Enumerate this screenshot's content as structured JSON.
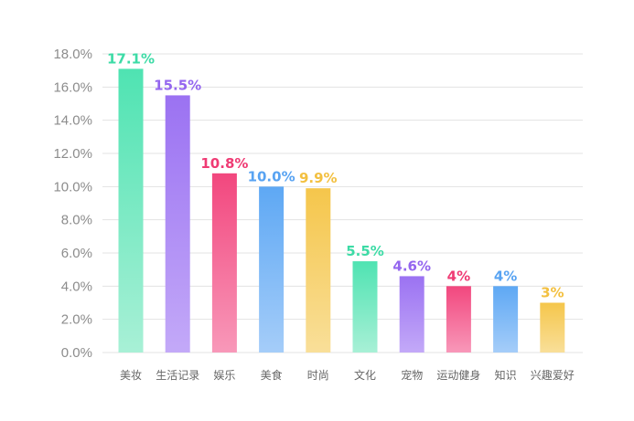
{
  "chart_data": {
    "type": "bar",
    "title": "",
    "xlabel": "",
    "ylabel": "",
    "ylim": [
      0,
      18
    ],
    "yticks": [
      "0.0%",
      "2.0%",
      "4.0%",
      "6.0%",
      "8.0%",
      "10.0%",
      "12.0%",
      "14.0%",
      "16.0%",
      "18.0%"
    ],
    "grid": true,
    "categories": [
      "美妆",
      "生活记录",
      "娱乐",
      "美食",
      "时尚",
      "文化",
      "宠物",
      "运动健身",
      "知识",
      "兴趣爱好"
    ],
    "values": [
      17.1,
      15.5,
      10.8,
      10.0,
      9.9,
      5.5,
      4.6,
      4,
      4,
      3
    ],
    "value_labels": [
      "17.1%",
      "15.5%",
      "10.8%",
      "10.0%",
      "9.9%",
      "5.5%",
      "4.6%",
      "4%",
      "4%",
      "3%"
    ],
    "bar_colors": [
      {
        "top": "#4fe3b2",
        "bottom": "#a8f0d6"
      },
      {
        "top": "#9b72f2",
        "bottom": "#c3a9f8"
      },
      {
        "top": "#f2477e",
        "bottom": "#f898b9"
      },
      {
        "top": "#5ea8f4",
        "bottom": "#a5cdf9"
      },
      {
        "top": "#f5c64b",
        "bottom": "#f9df99"
      },
      {
        "top": "#4fe3b2",
        "bottom": "#a8f0d6"
      },
      {
        "top": "#9b72f2",
        "bottom": "#c3a9f8"
      },
      {
        "top": "#f2477e",
        "bottom": "#f898b9"
      },
      {
        "top": "#5ea8f4",
        "bottom": "#a5cdf9"
      },
      {
        "top": "#f5c64b",
        "bottom": "#f9df99"
      }
    ],
    "label_colors": [
      "#3ddba6",
      "#9466ef",
      "#ef3b74",
      "#58a3f2",
      "#f3c040",
      "#3ddba6",
      "#9466ef",
      "#ef3b74",
      "#58a3f2",
      "#f3c040"
    ]
  }
}
